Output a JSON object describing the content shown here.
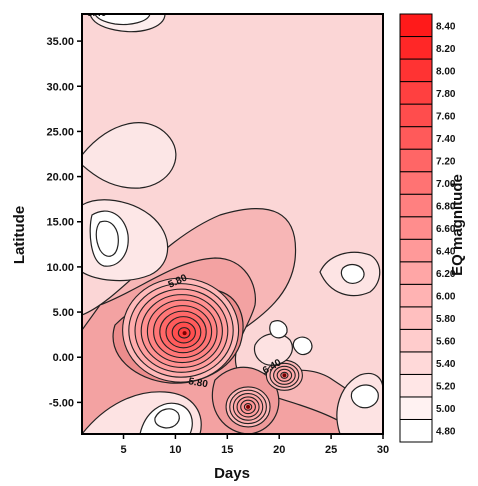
{
  "chart_data": {
    "type": "heatmap",
    "subtype": "filled-contour",
    "title": "",
    "xlabel": "Days",
    "ylabel": "Latitude",
    "xlim": [
      1,
      30
    ],
    "ylim": [
      -8.5,
      38
    ],
    "xticks": [
      "5",
      "10",
      "15",
      "20",
      "25",
      "30"
    ],
    "yticks": [
      "-5.00",
      "0.00",
      "5.00",
      "10.00",
      "15.00",
      "20.00",
      "25.00",
      "30.00",
      "35.00"
    ],
    "colorbar": {
      "label": "EQ magnitude",
      "ticks": [
        "4.80",
        "5.00",
        "5.20",
        "5.40",
        "5.60",
        "5.80",
        "6.00",
        "6.20",
        "6.40",
        "6.60",
        "6.80",
        "7.00",
        "7.20",
        "7.40",
        "7.60",
        "7.80",
        "8.00",
        "8.20",
        "8.40"
      ],
      "low_color": "#ffffff",
      "high_color": "#ff1a1a"
    },
    "contour_labels": [
      "5.80",
      "5.80",
      "6.40",
      "5.40"
    ],
    "peaks": [
      {
        "x": 10.5,
        "y": 3.0,
        "value": 7.8
      },
      {
        "x": 17.0,
        "y": -5.5,
        "value": 6.6
      },
      {
        "x": 20.5,
        "y": -2.0,
        "value": 6.4
      }
    ],
    "lows": [
      {
        "x": 4.0,
        "y": 13.5,
        "value": 4.8
      },
      {
        "x": 3.5,
        "y": 38.0,
        "value": 5.0
      },
      {
        "x": 8.5,
        "y": 24.0,
        "value": 5.2
      },
      {
        "x": 9.0,
        "y": -6.0,
        "value": 5.2
      },
      {
        "x": 27.0,
        "y": 10.0,
        "value": 5.2
      }
    ]
  }
}
